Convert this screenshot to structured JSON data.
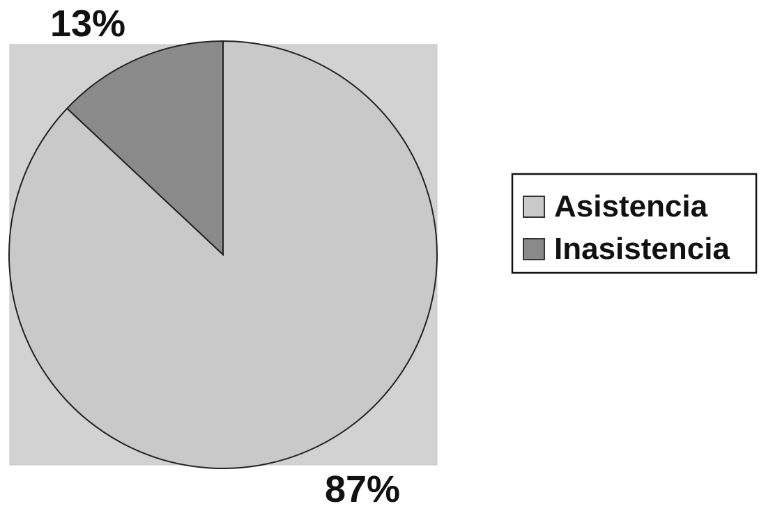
{
  "chart_data": {
    "type": "pie",
    "title": "",
    "categories": [
      "Asistencia",
      "Inasistencia"
    ],
    "values": [
      87,
      13
    ],
    "data_labels": [
      "87%",
      "13%"
    ],
    "colors": [
      "#c9c9c9",
      "#8a8a8a"
    ],
    "start_angle": "12 o'clock",
    "direction": "counter-clockwise",
    "plot_area_color": "#d2d2d2",
    "legend": {
      "placement": "right",
      "entries": [
        "Asistencia",
        "Inasistencia"
      ]
    }
  }
}
